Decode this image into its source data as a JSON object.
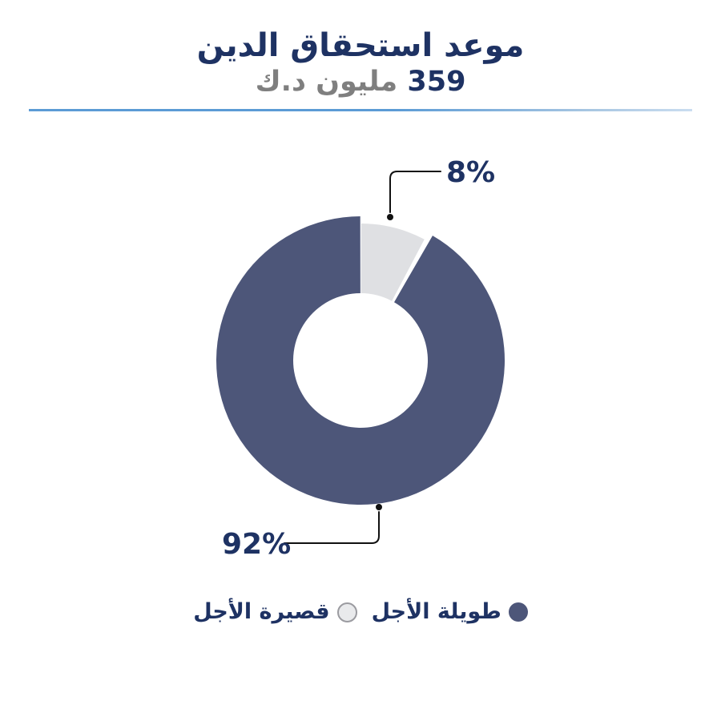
{
  "header": {
    "title": "موعد استحقاق الدين",
    "subtitle_value": "359",
    "subtitle_unit": "مليون د.ك"
  },
  "chart_data": {
    "type": "pie",
    "donut": true,
    "title": "موعد استحقاق الدين",
    "subtitle": "359 مليون د.ك",
    "total_value": 359,
    "total_unit": "مليون د.ك",
    "start_angle_deg": 0,
    "direction": "clockwise",
    "legend_position": "bottom",
    "slices": [
      {
        "label": "طويلة الأجل",
        "value": 92,
        "data_label": "92%",
        "color": "#4D5679"
      },
      {
        "label": "قصيرة الأجل",
        "value": 8,
        "data_label": "8%",
        "color": "#DFE0E3"
      }
    ]
  },
  "colors": {
    "title_navy": "#1E3263",
    "unit_gray": "#7F7F7F",
    "slice_navy": "#4D5679",
    "slice_gray": "#DFE0E3",
    "divider_blue": "#5B9BD5",
    "callout_line": "#111111",
    "legend_gray_border": "#9B9BA0"
  }
}
